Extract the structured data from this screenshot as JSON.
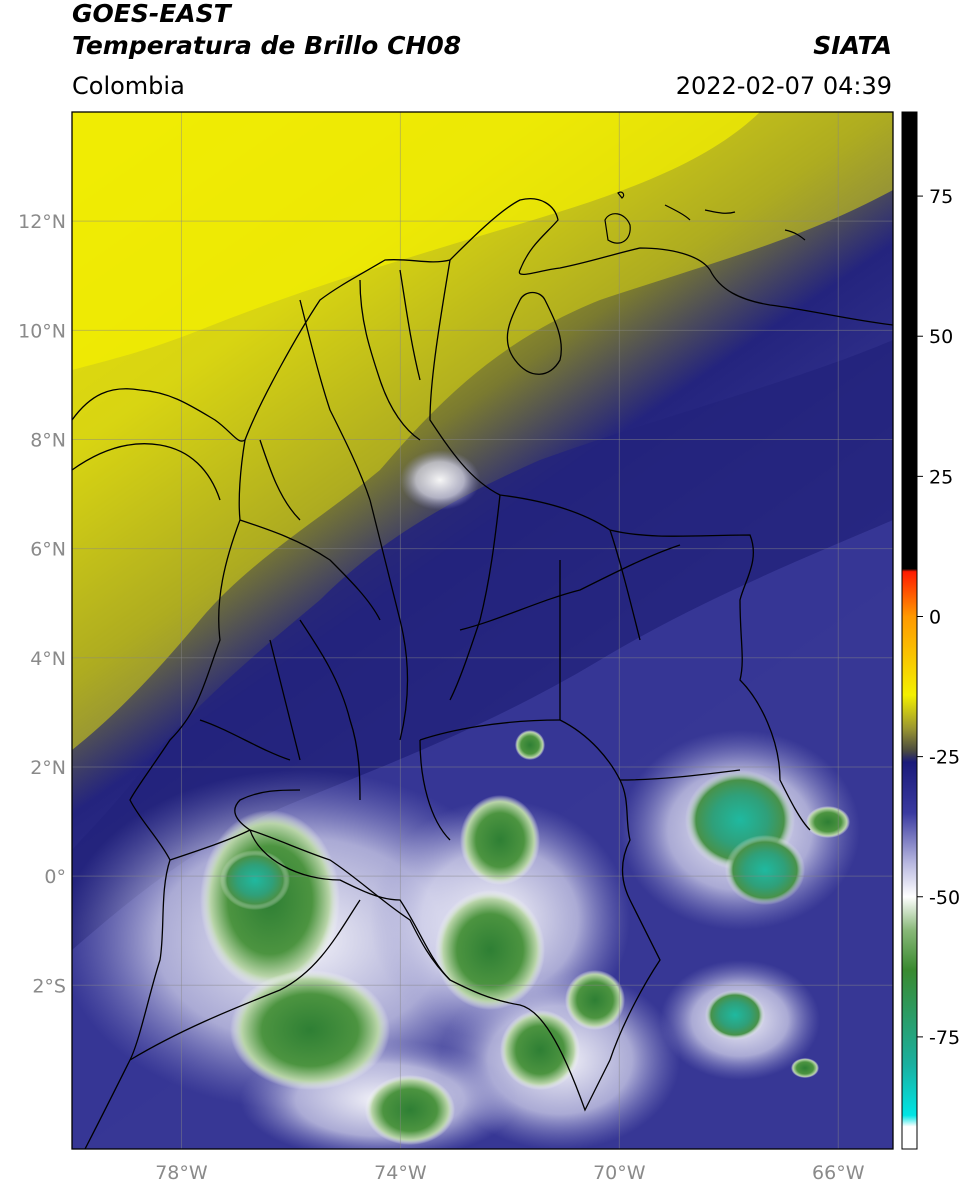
{
  "header": {
    "satellite": "GOES-EAST",
    "product": "Temperatura de Brillo CH08",
    "region": "Colombia",
    "source": "SIATA",
    "datetime": "2022-02-07 04:39"
  },
  "map": {
    "lon_range": [
      -80,
      -65
    ],
    "lat_range": [
      -5,
      14
    ],
    "lat_ticks": [
      {
        "value": 12,
        "label": "12°N"
      },
      {
        "value": 10,
        "label": "10°N"
      },
      {
        "value": 8,
        "label": "8°N"
      },
      {
        "value": 6,
        "label": "6°N"
      },
      {
        "value": 4,
        "label": "4°N"
      },
      {
        "value": 2,
        "label": "2°N"
      },
      {
        "value": 0,
        "label": "0°"
      },
      {
        "value": -2,
        "label": "2°S"
      }
    ],
    "lon_ticks": [
      {
        "value": -78,
        "label": "78°W"
      },
      {
        "value": -74,
        "label": "74°W"
      },
      {
        "value": -70,
        "label": "70°W"
      },
      {
        "value": -66,
        "label": "66°W"
      }
    ],
    "grid": true
  },
  "colorbar": {
    "range": [
      -95,
      90
    ],
    "ticks": [
      {
        "value": 75,
        "label": "75"
      },
      {
        "value": 50,
        "label": "50"
      },
      {
        "value": 25,
        "label": "25"
      },
      {
        "value": 0,
        "label": "0"
      },
      {
        "value": -25,
        "label": "-25"
      },
      {
        "value": -50,
        "label": "-50"
      },
      {
        "value": -75,
        "label": "-75"
      }
    ],
    "colors": {
      "black": "#000000",
      "red": "#ff1a00",
      "orange": "#ff9900",
      "yellow": "#f3f000",
      "olive": "#4a4a40",
      "navy": "#1a1a7a",
      "lavender": "#b8b8e0",
      "white": "#ffffff",
      "green": "#3a8a30",
      "teal": "#1ab0a0",
      "cyan": "#00e5e5"
    }
  }
}
